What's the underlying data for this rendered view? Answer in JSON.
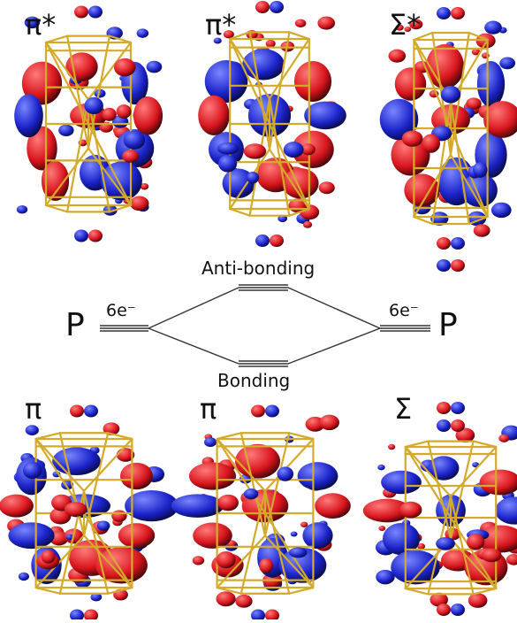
{
  "diagram": {
    "antibonding_label": "Anti-bonding",
    "bonding_label": "Bonding",
    "left_atom": {
      "label": "P",
      "electrons": "6e⁻"
    },
    "right_atom": {
      "label": "P",
      "electrons": "6e⁻"
    }
  },
  "orbitals": {
    "top": [
      {
        "label": "π*"
      },
      {
        "label": "π*"
      },
      {
        "label": "Σ*"
      }
    ],
    "bottom": [
      {
        "label": "π"
      },
      {
        "label": "π"
      },
      {
        "label": "Σ"
      }
    ]
  },
  "colors": {
    "positive_lobe": "#d7141c",
    "negative_lobe": "#1a22c8",
    "cage_bonds": "#d4aa2a",
    "lines": "#333333"
  }
}
